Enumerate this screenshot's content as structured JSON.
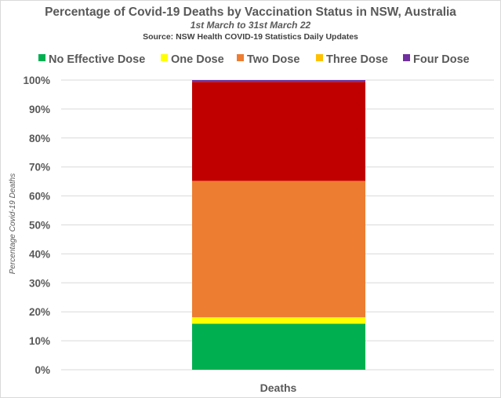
{
  "chart_data": {
    "type": "bar",
    "stacked": true,
    "title": "Percentage of Covid-19 Deaths by Vaccination Status in NSW, Australia",
    "subtitle": "1st March to 31st March 22",
    "source": "Source: NSW Health COVID-19 Statistics Daily Updates",
    "ylabel": "Percentage Covid-19 Deaths",
    "categories": [
      "Deaths"
    ],
    "ylim": [
      0,
      100
    ],
    "ytick_values": [
      0,
      10,
      20,
      30,
      40,
      50,
      60,
      70,
      80,
      90,
      100
    ],
    "ytick_labels": [
      "0%",
      "10%",
      "20%",
      "30%",
      "40%",
      "50%",
      "60%",
      "70%",
      "80%",
      "90%",
      "100%"
    ],
    "grid": true,
    "legend_position": "top",
    "series": [
      {
        "name": "No Effective Dose",
        "values": [
          15.9
        ],
        "color": "#00b050"
      },
      {
        "name": "One Dose",
        "values": [
          2.2
        ],
        "color": "#ffff00"
      },
      {
        "name": "Two Dose",
        "values": [
          47.1
        ],
        "color": "#ed7d31"
      },
      {
        "name": "Three Dose",
        "values": [
          34.2
        ],
        "color": "#c00000"
      },
      {
        "name": "Four Dose",
        "values": [
          0.6
        ],
        "color": "#7030a0"
      }
    ],
    "legend_colors": [
      "#00b050",
      "#ffff00",
      "#ed7d31",
      "#ffc000",
      "#7030a0"
    ]
  }
}
